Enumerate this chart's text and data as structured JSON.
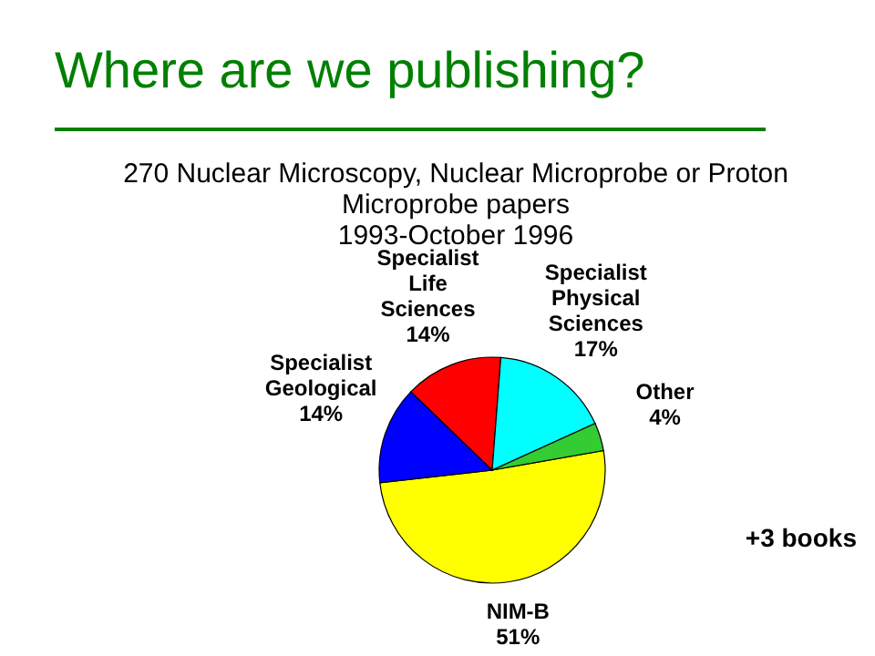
{
  "chart_data": {
    "type": "pie",
    "title": "Where are we publishing?",
    "subtitle": "270 Nuclear Microscopy, Nuclear Microprobe or Proton Microprobe papers\n1993-October 1996",
    "categories": [
      "NIM-B",
      "Specialist Geological",
      "Specialist Life Sciences",
      "Specialist Physical Sciences",
      "Other"
    ],
    "values": [
      51,
      14,
      14,
      17,
      4
    ],
    "value_labels": [
      "51%",
      "14%",
      "14%",
      "17%",
      "4%"
    ],
    "colors": [
      "#ffff00",
      "#0000ff",
      "#ff0000",
      "#00ffff",
      "#33cc33"
    ],
    "annotations": [
      "+3 books"
    ]
  }
}
